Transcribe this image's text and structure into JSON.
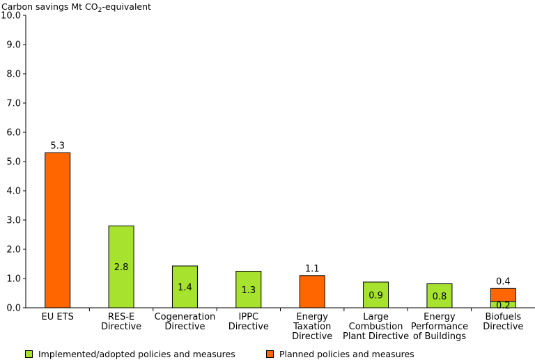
{
  "chart_data": {
    "type": "bar",
    "ylabel_prefix": "Carbon savings Mt CO",
    "ylabel_sub": "2",
    "ylabel_suffix": "-equivalent",
    "ylim": [
      0,
      10
    ],
    "ytick_step": 1,
    "ytick_labels": [
      "0.0",
      "1.0",
      "2.0",
      "3.0",
      "4.0",
      "5.0",
      "6.0",
      "7.0",
      "8.0",
      "9.0",
      "10.0"
    ],
    "grid": false,
    "colors": {
      "implemented": "#a6e22e",
      "planned": "#ff6600"
    },
    "categories": [
      [
        "EU ETS"
      ],
      [
        "RES-E",
        "Directive"
      ],
      [
        "Cogeneration",
        "Directive"
      ],
      [
        "IPPC",
        "Directive"
      ],
      [
        "Energy",
        "Taxation",
        "Directive"
      ],
      [
        "Large",
        "Combustion",
        "Plant Directive"
      ],
      [
        "Energy",
        "Performance",
        "of Buildings"
      ],
      [
        "Biofuels",
        "Directive"
      ]
    ],
    "series": [
      {
        "name": "Implemented/adopted policies and measures",
        "key": "implemented",
        "values": [
          0,
          2.8,
          1.43,
          1.25,
          0,
          0.88,
          0.82,
          0.22
        ],
        "labels": [
          "",
          "2.8",
          "1.4",
          "1.3",
          "",
          "0.9",
          "0.8",
          "0.2"
        ]
      },
      {
        "name": "Planned policies and measures",
        "key": "planned",
        "values": [
          5.3,
          0,
          0,
          0,
          1.1,
          0,
          0,
          0.44
        ],
        "labels": [
          "5.3",
          "",
          "",
          "",
          "1.1",
          "",
          "",
          "0.4"
        ]
      }
    ],
    "legend_position": "bottom"
  }
}
